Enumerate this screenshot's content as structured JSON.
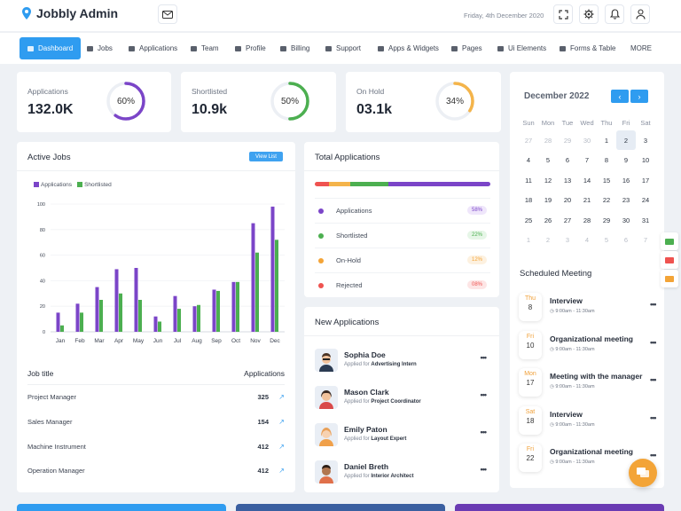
{
  "app": {
    "title": "Jobbly Admin",
    "date": "Friday, 4th December 2020"
  },
  "nav": [
    {
      "label": "Dashboard",
      "active": true
    },
    {
      "label": "Jobs"
    },
    {
      "label": "Applications"
    },
    {
      "label": "Team"
    },
    {
      "label": "Profile"
    },
    {
      "label": "Billing"
    },
    {
      "label": "Support"
    },
    {
      "label": "Apps & Widgets"
    },
    {
      "label": "Pages"
    },
    {
      "label": "Ui Elements"
    },
    {
      "label": "Forms & Table"
    },
    {
      "label": "MORE"
    }
  ],
  "stats": [
    {
      "label": "Applications",
      "value": "132.0K",
      "percent_label": "60%",
      "percent": 60,
      "color": "#7b45c8"
    },
    {
      "label": "Shortlisted",
      "value": "10.9k",
      "percent_label": "50%",
      "percent": 50,
      "color": "#4caf50"
    },
    {
      "label": "On Hold",
      "value": "03.1k",
      "percent_label": "34%",
      "percent": 34,
      "color": "#f4b44a"
    }
  ],
  "active_jobs": {
    "title": "Active Jobs",
    "view_list": "View List",
    "table_header": {
      "job": "Job title",
      "apps": "Applications"
    },
    "rows": [
      {
        "title": "Project Manager",
        "value": "325"
      },
      {
        "title": "Sales Manager",
        "value": "154"
      },
      {
        "title": "Machine Instrument",
        "value": "412"
      },
      {
        "title": "Operation Manager",
        "value": "412"
      }
    ]
  },
  "chart_data": {
    "type": "bar",
    "categories": [
      "Jan",
      "Feb",
      "Mar",
      "Apr",
      "May",
      "Jun",
      "Jul",
      "Aug",
      "Sep",
      "Oct",
      "Nov",
      "Dec"
    ],
    "series": [
      {
        "name": "Applications",
        "color": "#7b45c8",
        "values": [
          15,
          22,
          35,
          49,
          50,
          12,
          28,
          20,
          33,
          39,
          85,
          98
        ]
      },
      {
        "name": "Shortlisted",
        "color": "#4caf50",
        "values": [
          5,
          15,
          25,
          30,
          25,
          8,
          18,
          21,
          32,
          39,
          62,
          72
        ]
      }
    ],
    "ylim": [
      0,
      100
    ],
    "yticks": [
      "0",
      "20",
      "40",
      "60",
      "80",
      "100"
    ],
    "grid": true,
    "legend": "top-left"
  },
  "total_apps": {
    "title": "Total Applications",
    "segments": [
      {
        "color": "#ef5350",
        "share": 8
      },
      {
        "color": "#f4b44a",
        "share": 12
      },
      {
        "color": "#4caf50",
        "share": 22
      },
      {
        "color": "#7b45c8",
        "share": 58
      }
    ],
    "items": [
      {
        "label": "Applications",
        "pct": "58%",
        "color": "#7b45c8",
        "bg": "#efe6fb"
      },
      {
        "label": "Shortlisted",
        "pct": "22%",
        "color": "#4caf50",
        "bg": "#e6f6e7"
      },
      {
        "label": "On-Hold",
        "pct": "12%",
        "color": "#f4a437",
        "bg": "#fdf1e0"
      },
      {
        "label": "Rejected",
        "pct": "08%",
        "color": "#ef5350",
        "bg": "#fde5e5"
      }
    ]
  },
  "new_apps": {
    "title": "New Applications",
    "applied_for": "Applied for",
    "items": [
      {
        "name": "Sophia Doe",
        "role": "Advertising Intern"
      },
      {
        "name": "Mason Clark",
        "role": "Project Coordinator"
      },
      {
        "name": "Emily Paton",
        "role": "Layout Expert"
      },
      {
        "name": "Daniel Breth",
        "role": "Interior Architect"
      }
    ]
  },
  "calendar": {
    "month": "December 2022",
    "weekdays": [
      "Sun",
      "Mon",
      "Tue",
      "Wed",
      "Thu",
      "Fri",
      "Sat"
    ],
    "days": [
      "27",
      "28",
      "29",
      "30",
      "1",
      "2",
      "3",
      "4",
      "5",
      "6",
      "7",
      "8",
      "9",
      "10",
      "11",
      "12",
      "13",
      "14",
      "15",
      "16",
      "17",
      "18",
      "19",
      "20",
      "21",
      "22",
      "23",
      "24",
      "25",
      "26",
      "27",
      "28",
      "29",
      "30",
      "31",
      "1",
      "2",
      "3",
      "4",
      "5",
      "6",
      "7"
    ]
  },
  "meetings": {
    "title": "Scheduled Meeting",
    "items": [
      {
        "day": "Thu",
        "date": "8",
        "name": "Interview",
        "time": "9:00am - 11:30am"
      },
      {
        "day": "Fri",
        "date": "10",
        "name": "Organizational meeting",
        "time": "9:00am - 11:30am"
      },
      {
        "day": "Mon",
        "date": "17",
        "name": "Meeting with the manager",
        "time": "9:00am - 11:30am"
      },
      {
        "day": "Sat",
        "date": "18",
        "name": "Interview",
        "time": "9:00am - 11:30am"
      },
      {
        "day": "Fri",
        "date": "22",
        "name": "Organizational meeting",
        "time": "9:00am - 11:30am"
      }
    ]
  },
  "colors": {
    "primary": "#2f9cf0",
    "accent": "#f3a437"
  }
}
